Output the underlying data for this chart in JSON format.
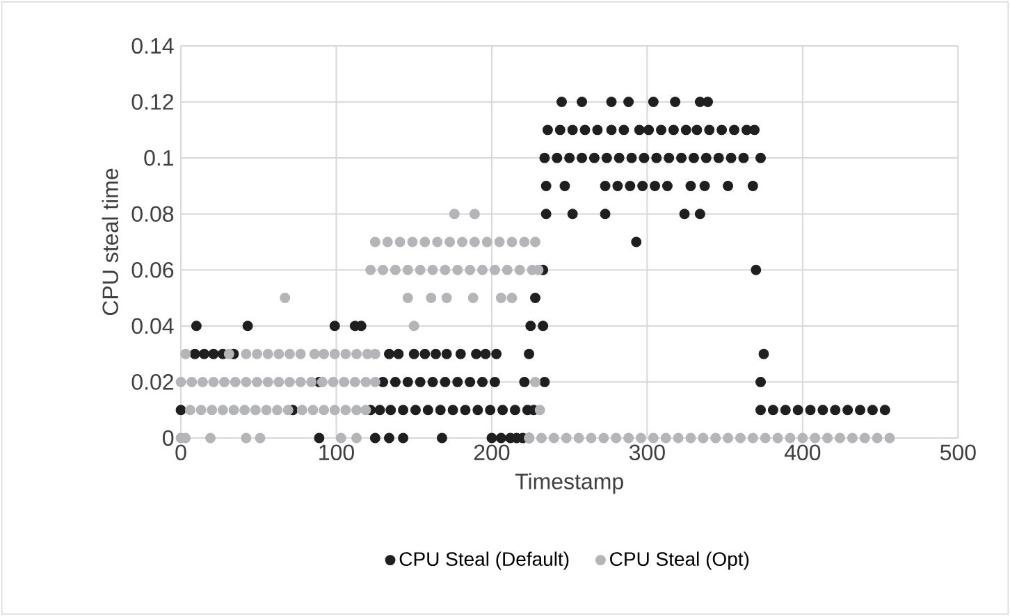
{
  "chart_data": {
    "type": "scatter",
    "xlabel": "Timestamp",
    "ylabel": "CPU steal time",
    "xlim": [
      0,
      500
    ],
    "xticks": [
      0,
      100,
      200,
      300,
      400,
      500
    ],
    "ylim": [
      0,
      0.14
    ],
    "yticks": [
      0,
      0.02,
      0.04,
      0.06,
      0.08,
      0.1,
      0.12,
      0.14
    ],
    "grid": true,
    "legend": "bottom",
    "marker": "circle",
    "series": [
      {
        "name": "CPU Steal (Default)",
        "color": "#1f1f1f",
        "x": [
          89,
          125,
          134,
          143,
          168,
          200,
          206,
          212,
          216,
          220,
          224,
          0,
          72,
          122,
          128,
          135,
          143,
          151,
          159,
          167,
          175,
          183,
          191,
          199,
          207,
          215,
          223,
          227,
          373,
          381,
          389,
          397,
          405,
          413,
          421,
          429,
          437,
          445,
          453,
          89,
          130,
          138,
          146,
          154,
          162,
          170,
          178,
          186,
          194,
          202,
          221,
          234,
          373,
          9,
          15,
          21,
          27,
          34,
          134,
          140,
          150,
          157,
          164,
          171,
          180,
          190,
          196,
          203,
          224,
          375,
          10,
          43,
          99,
          112,
          116,
          225,
          233,
          228,
          233,
          370,
          293,
          235,
          252,
          273,
          324,
          334,
          235,
          247,
          273,
          281,
          289,
          297,
          305,
          313,
          328,
          337,
          352,
          368,
          234,
          242,
          250,
          258,
          266,
          274,
          282,
          290,
          298,
          306,
          314,
          322,
          330,
          338,
          346,
          354,
          362,
          373,
          236,
          244,
          252,
          260,
          268,
          277,
          285,
          295,
          301,
          309,
          317,
          325,
          332,
          340,
          348,
          356,
          364,
          369,
          245,
          258,
          277,
          288,
          304,
          318,
          334,
          339
        ],
        "values": [
          0,
          0,
          0,
          0,
          0,
          0,
          0,
          0,
          0,
          0,
          0,
          0.01,
          0.01,
          0.01,
          0.01,
          0.01,
          0.01,
          0.01,
          0.01,
          0.01,
          0.01,
          0.01,
          0.01,
          0.01,
          0.01,
          0.01,
          0.01,
          0.01,
          0.01,
          0.01,
          0.01,
          0.01,
          0.01,
          0.01,
          0.01,
          0.01,
          0.01,
          0.01,
          0.01,
          0.02,
          0.02,
          0.02,
          0.02,
          0.02,
          0.02,
          0.02,
          0.02,
          0.02,
          0.02,
          0.02,
          0.02,
          0.02,
          0.02,
          0.03,
          0.03,
          0.03,
          0.03,
          0.03,
          0.03,
          0.03,
          0.03,
          0.03,
          0.03,
          0.03,
          0.03,
          0.03,
          0.03,
          0.03,
          0.03,
          0.03,
          0.04,
          0.04,
          0.04,
          0.04,
          0.04,
          0.04,
          0.04,
          0.05,
          0.06,
          0.06,
          0.07,
          0.08,
          0.08,
          0.08,
          0.08,
          0.08,
          0.09,
          0.09,
          0.09,
          0.09,
          0.09,
          0.09,
          0.09,
          0.09,
          0.09,
          0.09,
          0.09,
          0.09,
          0.1,
          0.1,
          0.1,
          0.1,
          0.1,
          0.1,
          0.1,
          0.1,
          0.1,
          0.1,
          0.1,
          0.1,
          0.1,
          0.1,
          0.1,
          0.1,
          0.1,
          0.1,
          0.11,
          0.11,
          0.11,
          0.11,
          0.11,
          0.11,
          0.11,
          0.11,
          0.11,
          0.11,
          0.11,
          0.11,
          0.11,
          0.11,
          0.11,
          0.11,
          0.11,
          0.11,
          0.12,
          0.12,
          0.12,
          0.12,
          0.12,
          0.12,
          0.12,
          0.12
        ]
      },
      {
        "name": "CPU Steal (Opt)",
        "color": "#b4b5b8",
        "x": [
          0,
          3,
          19,
          42,
          51,
          103,
          113,
          224,
          232,
          240,
          248,
          256,
          264,
          272,
          280,
          288,
          296,
          304,
          312,
          320,
          328,
          336,
          344,
          352,
          360,
          368,
          376,
          384,
          392,
          400,
          408,
          416,
          424,
          432,
          440,
          448,
          456,
          6,
          13,
          20,
          27,
          34,
          41,
          48,
          55,
          62,
          69,
          78,
          85,
          92,
          99,
          106,
          113,
          119,
          231,
          0,
          7,
          14,
          21,
          28,
          35,
          42,
          49,
          56,
          63,
          70,
          77,
          84,
          91,
          98,
          105,
          112,
          119,
          125,
          228,
          3,
          31,
          42,
          49,
          56,
          63,
          70,
          77,
          86,
          92,
          99,
          106,
          113,
          120,
          125,
          150,
          67,
          146,
          161,
          171,
          188,
          206,
          213,
          122,
          130,
          138,
          146,
          154,
          162,
          170,
          178,
          186,
          194,
          202,
          210,
          218,
          226,
          230,
          125,
          133,
          141,
          149,
          157,
          165,
          173,
          181,
          189,
          197,
          205,
          213,
          221,
          228,
          176,
          189
        ],
        "values": [
          0,
          0,
          0,
          0,
          0,
          0,
          0,
          0,
          0,
          0,
          0,
          0,
          0,
          0,
          0,
          0,
          0,
          0,
          0,
          0,
          0,
          0,
          0,
          0,
          0,
          0,
          0,
          0,
          0,
          0,
          0,
          0,
          0,
          0,
          0,
          0,
          0,
          0.01,
          0.01,
          0.01,
          0.01,
          0.01,
          0.01,
          0.01,
          0.01,
          0.01,
          0.01,
          0.01,
          0.01,
          0.01,
          0.01,
          0.01,
          0.01,
          0.01,
          0.01,
          0.02,
          0.02,
          0.02,
          0.02,
          0.02,
          0.02,
          0.02,
          0.02,
          0.02,
          0.02,
          0.02,
          0.02,
          0.02,
          0.02,
          0.02,
          0.02,
          0.02,
          0.02,
          0.02,
          0.02,
          0.03,
          0.03,
          0.03,
          0.03,
          0.03,
          0.03,
          0.03,
          0.03,
          0.03,
          0.03,
          0.03,
          0.03,
          0.03,
          0.03,
          0.03,
          0.04,
          0.05,
          0.05,
          0.05,
          0.05,
          0.05,
          0.05,
          0.05,
          0.06,
          0.06,
          0.06,
          0.06,
          0.06,
          0.06,
          0.06,
          0.06,
          0.06,
          0.06,
          0.06,
          0.06,
          0.06,
          0.06,
          0.06,
          0.07,
          0.07,
          0.07,
          0.07,
          0.07,
          0.07,
          0.07,
          0.07,
          0.07,
          0.07,
          0.07,
          0.07,
          0.07,
          0.07,
          0.08,
          0.08
        ]
      }
    ]
  }
}
